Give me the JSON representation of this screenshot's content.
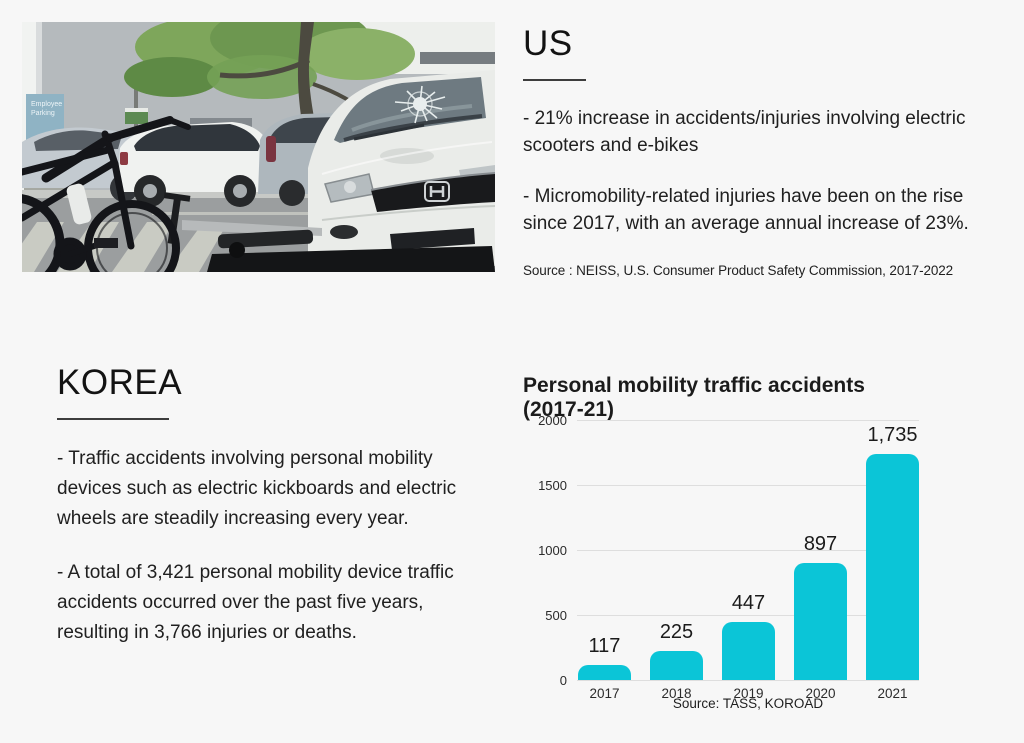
{
  "page": {
    "background": "#f7f7f7"
  },
  "photo": {
    "sign_line1": "Employee",
    "sign_line2": "Parking"
  },
  "us_section": {
    "heading": "US",
    "paragraphs": [
      "- 21% increase in accidents/injuries involving electric scooters and e-bikes",
      "- Micromobility-related injuries have been on the rise since 2017, with an average annual increase of 23%."
    ],
    "source": "Source : NEISS, U.S. Consumer Product Safety Commission,  2017-2022"
  },
  "korea_section": {
    "heading": "KOREA",
    "paragraphs": [
      "- Traffic accidents involving personal mobility devices such as electric kickboards and electric wheels are steadily increasing every year.",
      "- A total of 3,421 personal mobility device traffic accidents occurred over the past five years, resulting in 3,766 injuries or deaths."
    ]
  },
  "chart_data": {
    "type": "bar",
    "title": "Personal mobility traffic accidents (2017-21)",
    "categories": [
      "2017",
      "2018",
      "2019",
      "2020",
      "2021"
    ],
    "values": [
      117,
      225,
      447,
      897,
      1735
    ],
    "value_labels": [
      "117",
      "225",
      "447",
      "897",
      "1,735"
    ],
    "y_ticks": [
      0,
      500,
      1000,
      1500,
      2000
    ],
    "ylim": [
      0,
      2000
    ],
    "bar_color": "#0bc5d7",
    "grid": true,
    "legend": "none",
    "source": "Source: TASS, KOROAD"
  }
}
